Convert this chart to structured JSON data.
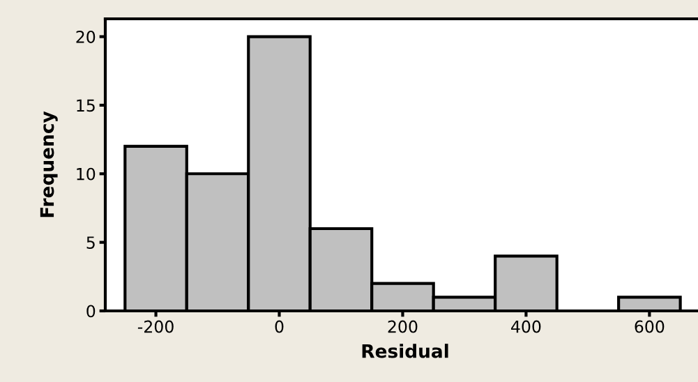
{
  "chart_data": {
    "type": "histogram",
    "xlabel": "Residual",
    "ylabel": "Frequency",
    "bins": [
      -250,
      -150,
      -50,
      50,
      150,
      250,
      350,
      450,
      550,
      650
    ],
    "values": [
      12,
      10,
      20,
      6,
      2,
      1,
      4,
      0,
      1
    ],
    "color": "#c0c0c0",
    "xlim": [
      -282,
      690
    ],
    "ylim": [
      0,
      21.3
    ],
    "xticks": [
      -200,
      0,
      200,
      400,
      600
    ],
    "yticks": [
      0,
      5,
      10,
      15,
      20
    ],
    "grid": false
  }
}
